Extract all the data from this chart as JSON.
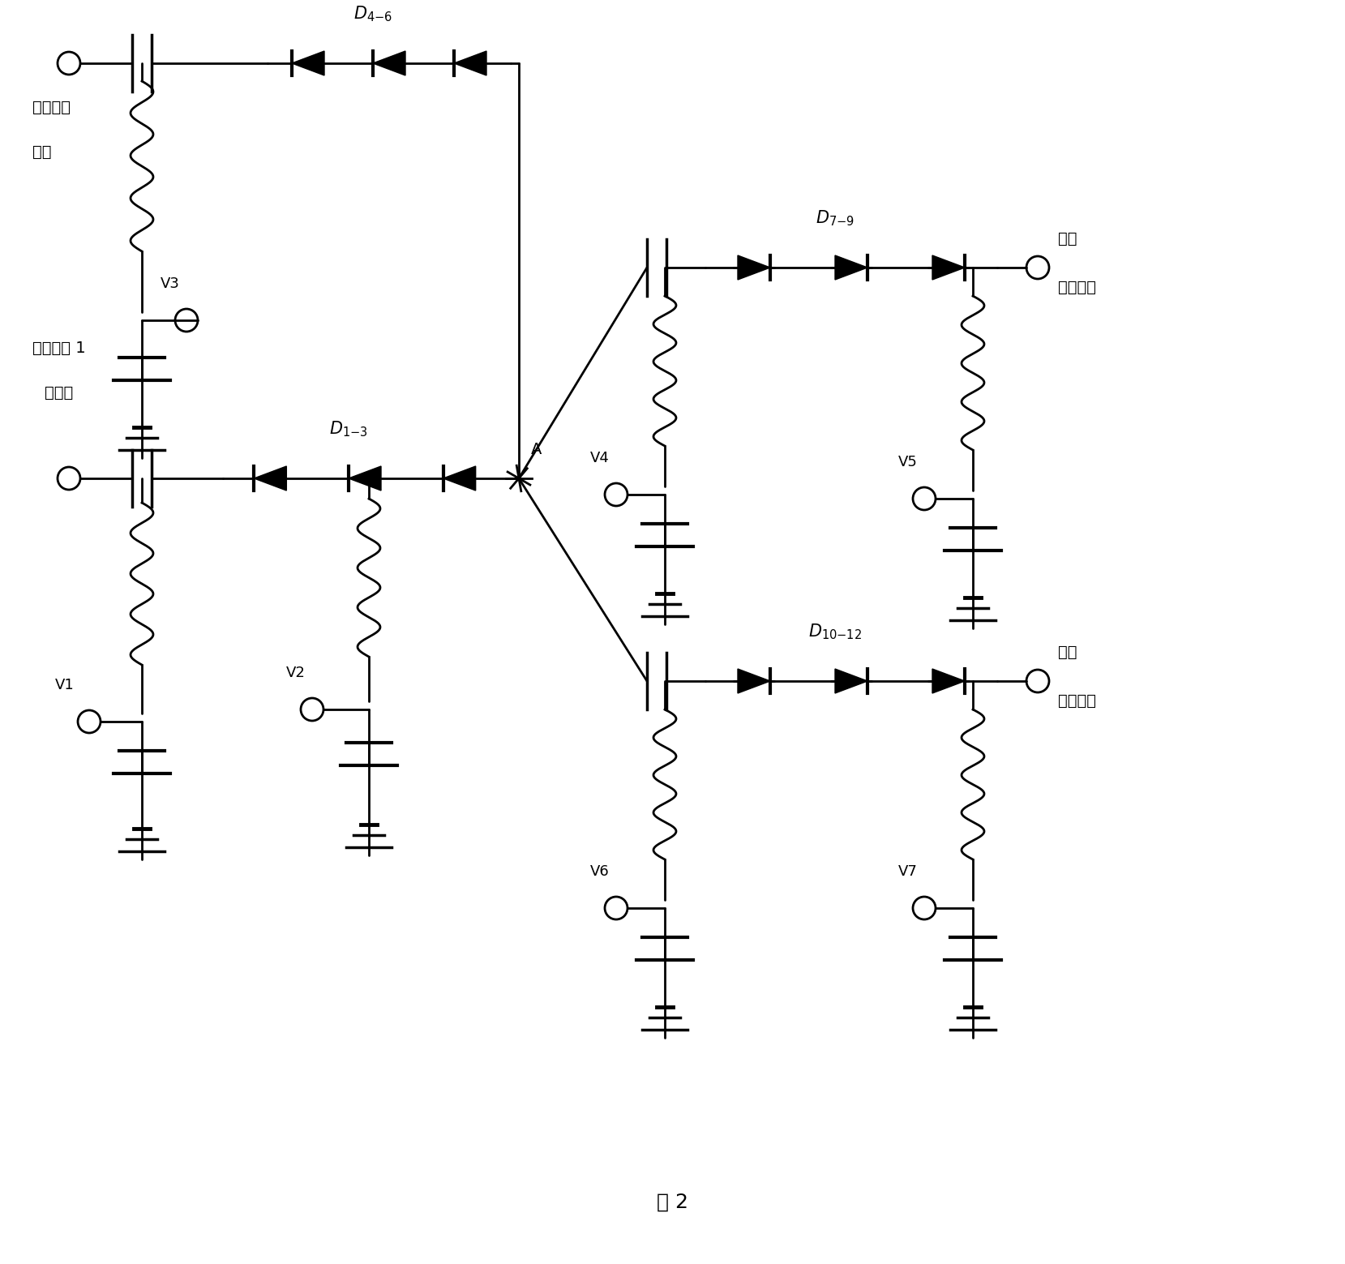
{
  "bg_color": "#ffffff",
  "line_color": "#000000",
  "fig_width": 16.59,
  "fig_height": 15.59,
  "labels": {
    "self_cal_line1": "自校信号",
    "self_cal_line2": "输入",
    "antenna1_line1": "来自天线 1",
    "antenna1_line2": "的信号",
    "main_out_line1": "主路",
    "main_out_line2": "信号输出",
    "aux_out_line1": "辅路",
    "aux_out_line2": "信号输出",
    "nodeA": "A",
    "V1": "V1",
    "V2": "V2",
    "V3": "V3",
    "V4": "V4",
    "V5": "V5",
    "V6": "V6",
    "V7": "V7",
    "fig_label": "图 2"
  }
}
